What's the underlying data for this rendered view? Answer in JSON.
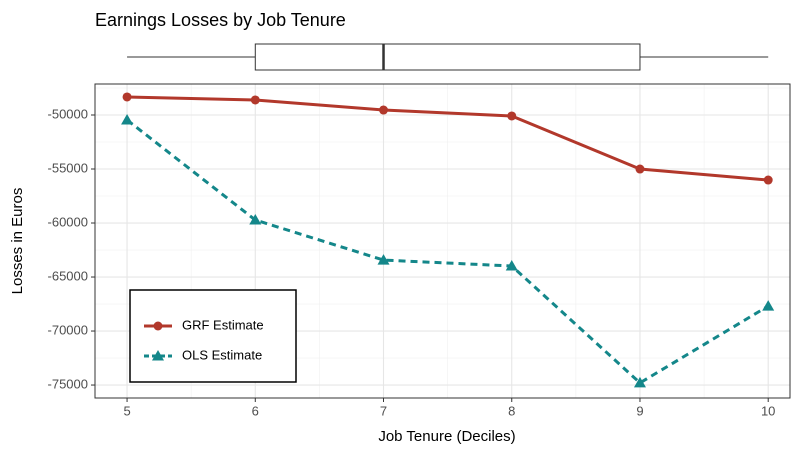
{
  "chart_data": {
    "type": "line",
    "title": "Earnings Losses by Job Tenure",
    "xlabel": "Job Tenure (Deciles)",
    "ylabel": "Losses in Euros",
    "x": [
      5,
      6,
      7,
      8,
      9,
      10
    ],
    "series": [
      {
        "name": "GRF Estimate",
        "color": "#b2382b",
        "marker": "circle",
        "dash": "solid",
        "values": [
          -48330,
          -48610,
          -49540,
          -50090,
          -55000,
          -56020
        ]
      },
      {
        "name": "OLS Estimate",
        "color": "#14878a",
        "marker": "triangle",
        "dash": "dashed",
        "values": [
          -50460,
          -59720,
          -63430,
          -63980,
          -74800,
          -67690
        ]
      }
    ],
    "boxplot": {
      "min": 5,
      "q1": 6,
      "median": 7,
      "q3": 9,
      "max": 10
    },
    "xlim": [
      4.75,
      10.17
    ],
    "ylim": [
      -76200,
      -47130
    ],
    "xticks": [
      5,
      6,
      7,
      8,
      9,
      10
    ],
    "yticks": [
      -75000,
      -70000,
      -65000,
      -60000,
      -55000,
      -50000
    ],
    "x_minor_grid": [
      5.5,
      6.5,
      7.5,
      8.5,
      9.5
    ],
    "y_minor_grid": [
      -72500,
      -67500,
      -62500,
      -57500,
      -52500,
      -47500
    ],
    "grid": true,
    "legend": "bottom-left"
  }
}
